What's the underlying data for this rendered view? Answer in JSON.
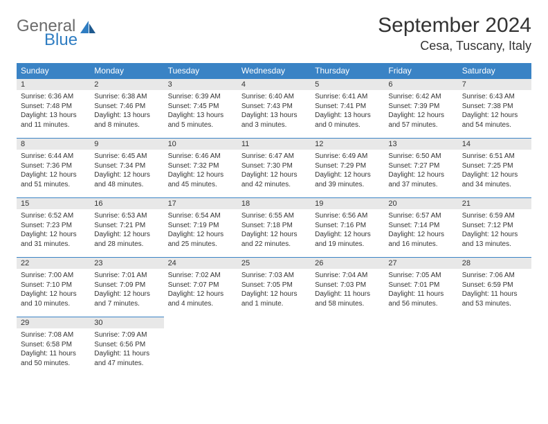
{
  "logo": {
    "word1": "General",
    "word2": "Blue"
  },
  "title": "September 2024",
  "location": "Cesa, Tuscany, Italy",
  "colors": {
    "header_bg": "#3a83c5",
    "header_text": "#ffffff",
    "daynum_bg": "#e8e8e8",
    "cell_border": "#3a83c5",
    "text": "#333333",
    "logo_gray": "#6b6b6b",
    "logo_blue": "#2f7dc2"
  },
  "day_headers": [
    "Sunday",
    "Monday",
    "Tuesday",
    "Wednesday",
    "Thursday",
    "Friday",
    "Saturday"
  ],
  "days": [
    {
      "n": "1",
      "sunrise": "6:36 AM",
      "sunset": "7:48 PM",
      "daylight": "13 hours and 11 minutes."
    },
    {
      "n": "2",
      "sunrise": "6:38 AM",
      "sunset": "7:46 PM",
      "daylight": "13 hours and 8 minutes."
    },
    {
      "n": "3",
      "sunrise": "6:39 AM",
      "sunset": "7:45 PM",
      "daylight": "13 hours and 5 minutes."
    },
    {
      "n": "4",
      "sunrise": "6:40 AM",
      "sunset": "7:43 PM",
      "daylight": "13 hours and 3 minutes."
    },
    {
      "n": "5",
      "sunrise": "6:41 AM",
      "sunset": "7:41 PM",
      "daylight": "13 hours and 0 minutes."
    },
    {
      "n": "6",
      "sunrise": "6:42 AM",
      "sunset": "7:39 PM",
      "daylight": "12 hours and 57 minutes."
    },
    {
      "n": "7",
      "sunrise": "6:43 AM",
      "sunset": "7:38 PM",
      "daylight": "12 hours and 54 minutes."
    },
    {
      "n": "8",
      "sunrise": "6:44 AM",
      "sunset": "7:36 PM",
      "daylight": "12 hours and 51 minutes."
    },
    {
      "n": "9",
      "sunrise": "6:45 AM",
      "sunset": "7:34 PM",
      "daylight": "12 hours and 48 minutes."
    },
    {
      "n": "10",
      "sunrise": "6:46 AM",
      "sunset": "7:32 PM",
      "daylight": "12 hours and 45 minutes."
    },
    {
      "n": "11",
      "sunrise": "6:47 AM",
      "sunset": "7:30 PM",
      "daylight": "12 hours and 42 minutes."
    },
    {
      "n": "12",
      "sunrise": "6:49 AM",
      "sunset": "7:29 PM",
      "daylight": "12 hours and 39 minutes."
    },
    {
      "n": "13",
      "sunrise": "6:50 AM",
      "sunset": "7:27 PM",
      "daylight": "12 hours and 37 minutes."
    },
    {
      "n": "14",
      "sunrise": "6:51 AM",
      "sunset": "7:25 PM",
      "daylight": "12 hours and 34 minutes."
    },
    {
      "n": "15",
      "sunrise": "6:52 AM",
      "sunset": "7:23 PM",
      "daylight": "12 hours and 31 minutes."
    },
    {
      "n": "16",
      "sunrise": "6:53 AM",
      "sunset": "7:21 PM",
      "daylight": "12 hours and 28 minutes."
    },
    {
      "n": "17",
      "sunrise": "6:54 AM",
      "sunset": "7:19 PM",
      "daylight": "12 hours and 25 minutes."
    },
    {
      "n": "18",
      "sunrise": "6:55 AM",
      "sunset": "7:18 PM",
      "daylight": "12 hours and 22 minutes."
    },
    {
      "n": "19",
      "sunrise": "6:56 AM",
      "sunset": "7:16 PM",
      "daylight": "12 hours and 19 minutes."
    },
    {
      "n": "20",
      "sunrise": "6:57 AM",
      "sunset": "7:14 PM",
      "daylight": "12 hours and 16 minutes."
    },
    {
      "n": "21",
      "sunrise": "6:59 AM",
      "sunset": "7:12 PM",
      "daylight": "12 hours and 13 minutes."
    },
    {
      "n": "22",
      "sunrise": "7:00 AM",
      "sunset": "7:10 PM",
      "daylight": "12 hours and 10 minutes."
    },
    {
      "n": "23",
      "sunrise": "7:01 AM",
      "sunset": "7:09 PM",
      "daylight": "12 hours and 7 minutes."
    },
    {
      "n": "24",
      "sunrise": "7:02 AM",
      "sunset": "7:07 PM",
      "daylight": "12 hours and 4 minutes."
    },
    {
      "n": "25",
      "sunrise": "7:03 AM",
      "sunset": "7:05 PM",
      "daylight": "12 hours and 1 minute."
    },
    {
      "n": "26",
      "sunrise": "7:04 AM",
      "sunset": "7:03 PM",
      "daylight": "11 hours and 58 minutes."
    },
    {
      "n": "27",
      "sunrise": "7:05 AM",
      "sunset": "7:01 PM",
      "daylight": "11 hours and 56 minutes."
    },
    {
      "n": "28",
      "sunrise": "7:06 AM",
      "sunset": "6:59 PM",
      "daylight": "11 hours and 53 minutes."
    },
    {
      "n": "29",
      "sunrise": "7:08 AM",
      "sunset": "6:58 PM",
      "daylight": "11 hours and 50 minutes."
    },
    {
      "n": "30",
      "sunrise": "7:09 AM",
      "sunset": "6:56 PM",
      "daylight": "11 hours and 47 minutes."
    }
  ]
}
